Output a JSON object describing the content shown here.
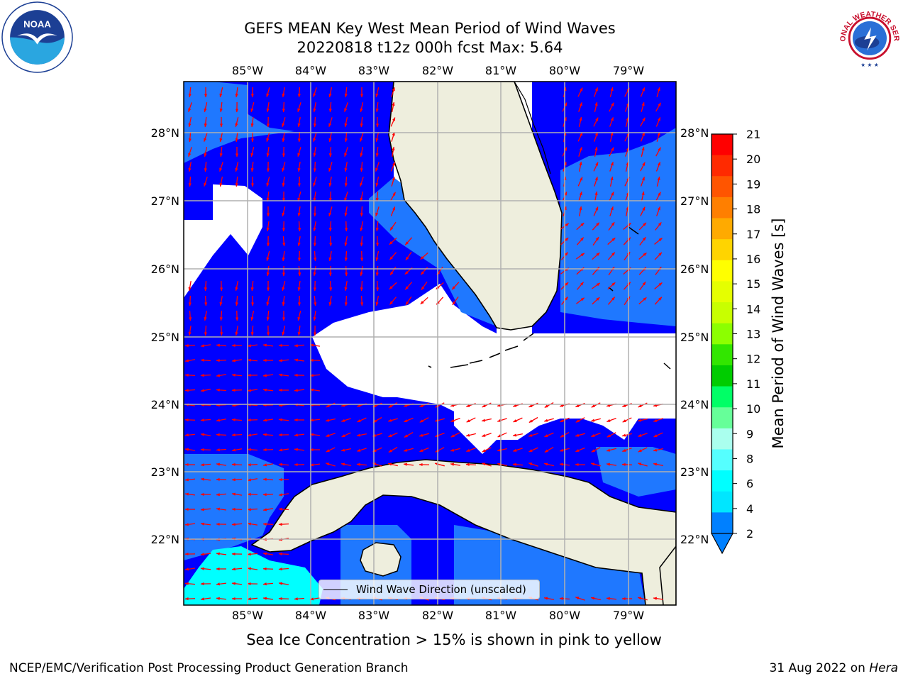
{
  "header": {
    "title_line1": "GEFS MEAN Key West Mean Period of Wind Waves",
    "title_line2": "20220818 t12z 000h fcst   Max: 5.64"
  },
  "logos": {
    "left": "NOAA",
    "right": "NATIONAL WEATHER SERVICE"
  },
  "map": {
    "lon_labels": [
      "85°W",
      "84°W",
      "83°W",
      "82°W",
      "81°W",
      "80°W",
      "79°W"
    ],
    "lat_labels_left": [
      "28°N",
      "27°N",
      "26°N",
      "25°N",
      "24°N",
      "23°N",
      "22°N"
    ],
    "lat_labels_right": [
      "28°N",
      "27°N",
      "26°N",
      "25°N",
      "24°N",
      "23°N",
      "22°N"
    ],
    "legend": "Wind Wave Direction (unscaled)"
  },
  "colorbar": {
    "label": "Mean Period of Wind Waves [s]",
    "ticks": [
      "21",
      "20",
      "19",
      "18",
      "17",
      "16",
      "15",
      "14",
      "13",
      "12",
      "11",
      "10",
      "9",
      "8",
      "6",
      "4",
      "2"
    ],
    "colors": [
      "#ff0000",
      "#ff2a00",
      "#ff5500",
      "#ff7f00",
      "#ffaa00",
      "#ffd400",
      "#ffff00",
      "#e5ff00",
      "#c8ff00",
      "#8cff00",
      "#32e600",
      "#00cc00",
      "#00ff66",
      "#66ff99",
      "#aaffee",
      "#55ffff",
      "#00ffff",
      "#00e6ff",
      "#0080ff"
    ]
  },
  "subtitle": "Sea Ice Concentration > 15% is shown in pink to yellow",
  "footer": {
    "left": "NCEP/EMC/Verification Post Processing Product Generation Branch",
    "right_prefix": "31 Aug 2022 on ",
    "right_italic": "Hera"
  },
  "colors": {
    "deep_blue": "#0000ff",
    "mid_blue": "#1f78ff",
    "cyan": "#00ffff",
    "land": "#eeeedd",
    "arrow": "#ff0000",
    "grid": "#b0b0b0"
  }
}
